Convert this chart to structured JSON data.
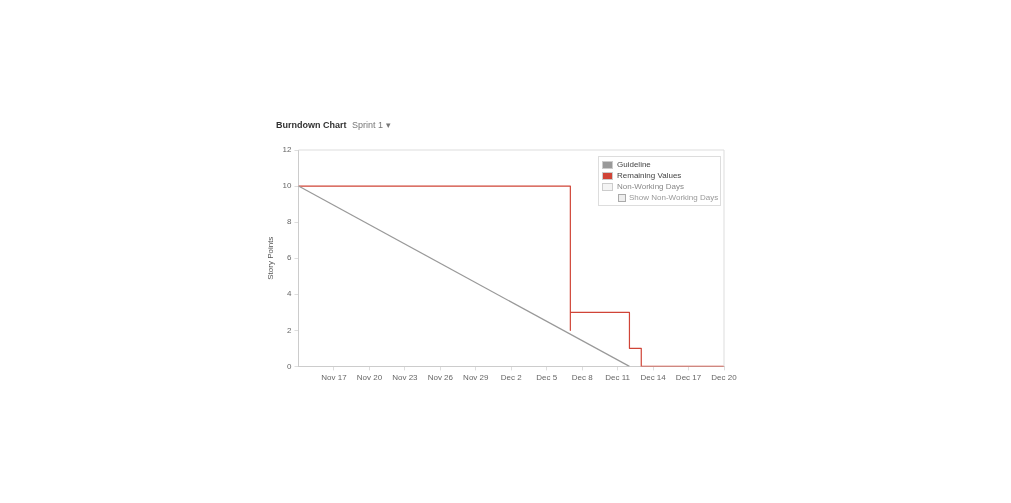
{
  "chart_data": {
    "type": "line",
    "title": "Burndown Chart",
    "subtitle": "Sprint 1 ▾",
    "ylabel": "Story Points",
    "xlim": [
      "--11-14",
      "--12-20"
    ],
    "xticks": [
      {
        "value": "--11-17",
        "label": "Nov 17"
      },
      {
        "value": "--11-20",
        "label": "Nov 20"
      },
      {
        "value": "--11-23",
        "label": "Nov 23"
      },
      {
        "value": "--11-26",
        "label": "Nov 26"
      },
      {
        "value": "--11-29",
        "label": "Nov 29"
      },
      {
        "value": "--12-02",
        "label": "Dec 2"
      },
      {
        "value": "--12-05",
        "label": "Dec 5"
      },
      {
        "value": "--12-08",
        "label": "Dec 8"
      },
      {
        "value": "--12-11",
        "label": "Dec 11"
      },
      {
        "value": "--12-14",
        "label": "Dec 14"
      },
      {
        "value": "--12-17",
        "label": "Dec 17"
      },
      {
        "value": "--12-20",
        "label": "Dec 20"
      }
    ],
    "ylim": [
      0,
      12
    ],
    "yticks": [
      0,
      2,
      4,
      6,
      8,
      10,
      12
    ],
    "grid": false,
    "legend": "top right",
    "marker": "none",
    "line_style": "solid",
    "series": [
      {
        "name": "Guideline",
        "color": "#999999",
        "x": [
          "--11-14",
          "--12-12"
        ],
        "values": [
          10,
          0
        ]
      },
      {
        "name": "Remaining Values",
        "color": "#d04437",
        "x": [
          "--11-14",
          "--12-07",
          "--12-07",
          "--12-07",
          "--12-12",
          "--12-12",
          "--12-13",
          "--12-13",
          "--12-20"
        ],
        "values": [
          10,
          10,
          2,
          3,
          3,
          1,
          1,
          0,
          0
        ]
      }
    ],
    "annotations": [
      "Non-Working Days",
      "Show Non-Working Days"
    ]
  }
}
